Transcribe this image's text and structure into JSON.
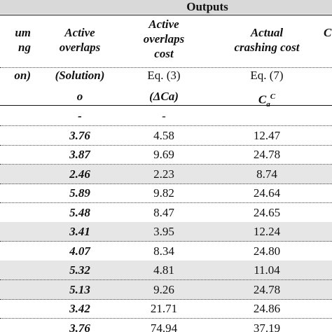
{
  "title": "Outputs",
  "headers": {
    "left_fragments": [
      "um",
      "ng"
    ],
    "col_overlaps": [
      "Active",
      "overlaps"
    ],
    "col_cost": [
      "Active",
      "overlaps",
      "cost"
    ],
    "col_crash": [
      "Actual",
      "crashing cost"
    ],
    "right_fragment": "C"
  },
  "subheaders": {
    "left_fragment": "on)",
    "overlaps_1": "(Solution)",
    "overlaps_2": "o",
    "cost_1": "Eq. (3)",
    "cost_2": "(ΔCa)",
    "crash_1": "Eq. (7)",
    "crash_2_base": "C",
    "crash_2_sub": "a",
    "crash_2_sup": "C"
  },
  "rows": [
    {
      "overlaps": "-",
      "cost": "-",
      "crash": "",
      "shaded": false
    },
    {
      "overlaps": "3.76",
      "cost": "4.58",
      "crash": "12.47",
      "shaded": false
    },
    {
      "overlaps": "3.87",
      "cost": "9.69",
      "crash": "24.78",
      "shaded": false
    },
    {
      "overlaps": "2.46",
      "cost": "2.23",
      "crash": "8.74",
      "shaded": true
    },
    {
      "overlaps": "5.89",
      "cost": "9.82",
      "crash": "24.64",
      "shaded": false
    },
    {
      "overlaps": "5.48",
      "cost": "8.47",
      "crash": "24.65",
      "shaded": false
    },
    {
      "overlaps": "3.41",
      "cost": "3.95",
      "crash": "12.24",
      "shaded": true
    },
    {
      "overlaps": "4.07",
      "cost": "8.34",
      "crash": "24.80",
      "shaded": false
    },
    {
      "overlaps": "5.32",
      "cost": "4.81",
      "crash": "11.04",
      "shaded": true
    },
    {
      "overlaps": "5.13",
      "cost": "9.26",
      "crash": "24.78",
      "shaded": true
    },
    {
      "overlaps": "3.42",
      "cost": "21.71",
      "crash": "24.86",
      "shaded": false
    },
    {
      "overlaps": "3.76",
      "cost": "74.94",
      "crash": "37.19",
      "shaded": false
    }
  ]
}
